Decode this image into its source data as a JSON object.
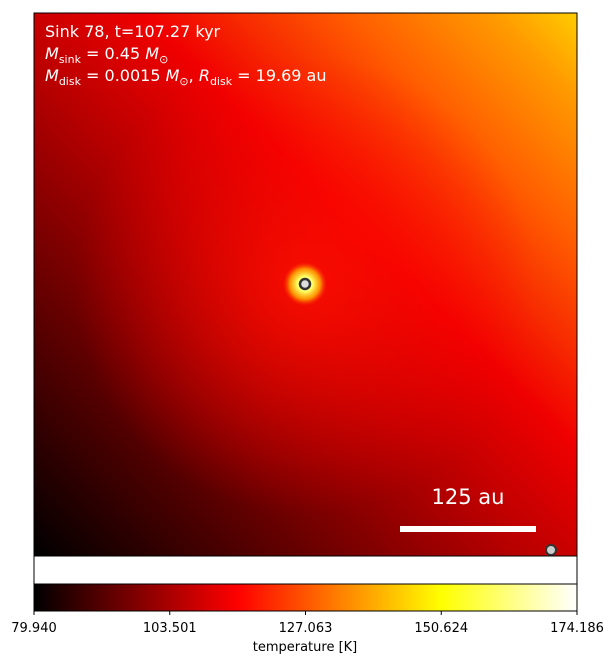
{
  "chart_data": {
    "type": "heatmap",
    "annotation_lines": [
      [
        {
          "text": "Sink 78, t=107.27 kyr"
        }
      ],
      [
        {
          "math": "M"
        },
        {
          "sub": "sink"
        },
        {
          "text": " = 0.45 "
        },
        {
          "math": "M"
        },
        {
          "sub": "⊙"
        }
      ],
      [
        {
          "math": "M"
        },
        {
          "sub": "disk"
        },
        {
          "text": " = 0.0015 "
        },
        {
          "math": "M"
        },
        {
          "sub": "⊙"
        },
        {
          "text": ", "
        },
        {
          "math": "R"
        },
        {
          "sub": "disk"
        },
        {
          "text": " = 19.69 au"
        }
      ]
    ],
    "scale_bar_label": "125 au",
    "colorbar": {
      "label": "temperature [K]",
      "colormap": "hot",
      "clim": [
        79.94,
        174.186
      ],
      "ticks": [
        {
          "value": 79.94,
          "label": "79.940"
        },
        103.501,
        127.063,
        150.624,
        174.186
      ]
    }
  }
}
